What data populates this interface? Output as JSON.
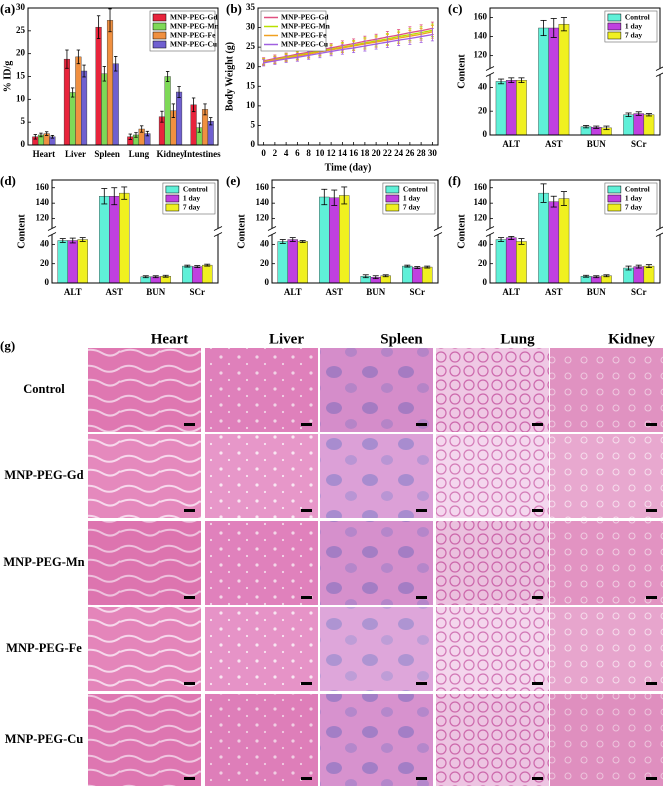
{
  "chart_data": [
    {
      "type": "bar",
      "label": "(a)",
      "ylabel": "% ID/g",
      "categories": [
        "Heart",
        "Liver",
        "Spleen",
        "Lung",
        "Kidney",
        "Intestines"
      ],
      "series": [
        {
          "name": "MNP-PEG-Gd",
          "color": "#e8243c",
          "values": [
            1.8,
            18.8,
            25.8,
            1.8,
            6.2,
            8.8
          ],
          "errors": [
            0.5,
            2.0,
            2.5,
            0.6,
            1.2,
            1.5
          ]
        },
        {
          "name": "MNP-PEG-Mn",
          "color": "#7ed957",
          "values": [
            2.2,
            11.5,
            15.6,
            2.2,
            15.0,
            3.8
          ],
          "errors": [
            0.4,
            1.0,
            1.6,
            0.5,
            1.1,
            1.0
          ]
        },
        {
          "name": "MNP-PEG-Fe",
          "color": "#f09040",
          "values": [
            2.5,
            19.3,
            27.3,
            3.5,
            7.5,
            7.8
          ],
          "errors": [
            0.4,
            1.5,
            2.5,
            0.7,
            1.5,
            1.2
          ]
        },
        {
          "name": "MNP-PEG-Cu",
          "color": "#7060d0",
          "values": [
            1.8,
            16.2,
            17.8,
            2.5,
            11.6,
            5.2
          ],
          "errors": [
            0.3,
            1.3,
            1.6,
            0.5,
            1.2,
            0.8
          ]
        }
      ],
      "ylim": [
        0,
        30
      ],
      "yticks": [
        0,
        5,
        10,
        15,
        20,
        25,
        30
      ],
      "legend": "upper right"
    },
    {
      "type": "line",
      "label": "(b)",
      "xlabel": "Time (day)",
      "ylabel": "Body Weight (g)",
      "x": [
        0,
        2,
        4,
        6,
        8,
        10,
        12,
        14,
        16,
        18,
        20,
        22,
        24,
        26,
        28,
        30
      ],
      "series": [
        {
          "name": "MNP-PEG-Gd",
          "color": "#e05080",
          "values": [
            21.5,
            22.1,
            22.6,
            23.2,
            23.7,
            24.3,
            24.8,
            25.4,
            25.9,
            26.5,
            27.0,
            27.6,
            28.1,
            28.7,
            29.2,
            29.8
          ],
          "errors": [
            0.8,
            0.9,
            0.9,
            1.0,
            1.0,
            1.1,
            1.1,
            1.2,
            1.2,
            1.3,
            1.3,
            1.4,
            1.4,
            1.5,
            1.5,
            1.6
          ]
        },
        {
          "name": "MNP-PEG-Mn",
          "color": "#b8e000",
          "values": [
            21.3,
            21.8,
            22.4,
            22.9,
            23.4,
            24.0,
            24.5,
            25.0,
            25.5,
            26.1,
            26.6,
            27.1,
            27.7,
            28.2,
            28.7,
            29.3
          ],
          "errors": [
            0.8,
            0.9,
            0.9,
            1.0,
            1.0,
            1.1,
            1.1,
            1.2,
            1.2,
            1.3,
            1.3,
            1.4,
            1.4,
            1.5,
            1.5,
            1.6
          ]
        },
        {
          "name": "MNP-PEG-Fe",
          "color": "#f0a020",
          "values": [
            21.2,
            21.7,
            22.2,
            22.7,
            23.2,
            23.8,
            24.3,
            24.8,
            25.3,
            25.8,
            26.3,
            26.8,
            27.3,
            27.8,
            28.3,
            28.9
          ],
          "errors": [
            0.8,
            0.9,
            0.9,
            1.0,
            1.0,
            1.1,
            1.1,
            1.2,
            1.2,
            1.3,
            1.3,
            1.4,
            1.4,
            1.5,
            1.5,
            1.6
          ]
        },
        {
          "name": "MNP-PEG-Cu",
          "color": "#a060e0",
          "values": [
            21.0,
            21.5,
            22.0,
            22.4,
            22.9,
            23.4,
            23.9,
            24.4,
            24.8,
            25.3,
            25.8,
            26.3,
            26.8,
            27.2,
            27.7,
            28.2
          ],
          "errors": [
            0.8,
            0.9,
            0.9,
            1.0,
            1.0,
            1.1,
            1.1,
            1.2,
            1.2,
            1.3,
            1.3,
            1.4,
            1.4,
            1.5,
            1.5,
            1.6
          ]
        }
      ],
      "xlim": [
        -1,
        31
      ],
      "xticks": [
        0,
        2,
        4,
        6,
        8,
        10,
        12,
        14,
        16,
        18,
        20,
        22,
        24,
        26,
        28,
        30
      ],
      "ylim": [
        0,
        35
      ],
      "yticks": [
        0,
        5,
        10,
        15,
        20,
        25,
        30,
        35
      ],
      "legend": "upper left"
    },
    {
      "type": "bar",
      "label": "(c)",
      "ylabel": "Content",
      "categories": [
        "ALT",
        "AST",
        "BUN",
        "SCr"
      ],
      "series": [
        {
          "name": "Control",
          "color": "#5ff0d8",
          "values": [
            45,
            149,
            7,
            17
          ],
          "errors": [
            2,
            8,
            1,
            1.5
          ]
        },
        {
          "name": "1 day",
          "color": "#c040e0",
          "values": [
            46,
            149,
            6.5,
            18
          ],
          "errors": [
            2,
            10,
            1,
            1.5
          ]
        },
        {
          "name": "7 day",
          "color": "#f0f020",
          "values": [
            46,
            153,
            6,
            17
          ],
          "errors": [
            2,
            7,
            1.5,
            1
          ]
        }
      ],
      "ylim": [
        0,
        170
      ],
      "ybreak": [
        48,
        110
      ],
      "yticks": [
        0,
        20,
        40,
        120,
        140,
        160
      ],
      "legend": "upper right"
    },
    {
      "type": "bar",
      "label": "(d)",
      "ylabel": "Content",
      "categories": [
        "ALT",
        "AST",
        "BUN",
        "SCr"
      ],
      "series": [
        {
          "name": "Control",
          "color": "#5ff0d8",
          "values": [
            44,
            149,
            6.5,
            17.5
          ],
          "errors": [
            2,
            10,
            1,
            1
          ]
        },
        {
          "name": "1 day",
          "color": "#c040e0",
          "values": [
            44,
            149,
            6.5,
            17
          ],
          "errors": [
            2.5,
            11,
            1,
            1
          ]
        },
        {
          "name": "7 day",
          "color": "#f0f020",
          "values": [
            45,
            153,
            7,
            18.5
          ],
          "errors": [
            2,
            8,
            1,
            1
          ]
        }
      ],
      "ylim": [
        0,
        170
      ],
      "ybreak": [
        48,
        110
      ],
      "yticks": [
        0,
        20,
        40,
        120,
        140,
        160
      ],
      "legend": "upper right"
    },
    {
      "type": "bar",
      "label": "(e)",
      "ylabel": "Content",
      "categories": [
        "ALT",
        "AST",
        "BUN",
        "SCr"
      ],
      "series": [
        {
          "name": "Control",
          "color": "#5ff0d8",
          "values": [
            43,
            148,
            7,
            17.5
          ],
          "errors": [
            2,
            10,
            1.5,
            1
          ]
        },
        {
          "name": "1 day",
          "color": "#c040e0",
          "values": [
            45,
            147,
            6,
            16
          ],
          "errors": [
            2,
            10,
            1.5,
            1
          ]
        },
        {
          "name": "7 day",
          "color": "#f0f020",
          "values": [
            43,
            150,
            7.5,
            16.5
          ],
          "errors": [
            1,
            11,
            1,
            1
          ]
        }
      ],
      "ylim": [
        0,
        170
      ],
      "ybreak": [
        48,
        110
      ],
      "yticks": [
        0,
        20,
        40,
        120,
        140,
        160
      ],
      "legend": "upper right"
    },
    {
      "type": "bar",
      "label": "(f)",
      "ylabel": "Content",
      "categories": [
        "ALT",
        "AST",
        "BUN",
        "SCr"
      ],
      "series": [
        {
          "name": "Control",
          "color": "#5ff0d8",
          "values": [
            45,
            153,
            7,
            15.5
          ],
          "errors": [
            2,
            12,
            1,
            2
          ]
        },
        {
          "name": "1 day",
          "color": "#c040e0",
          "values": [
            47,
            142,
            6.5,
            17
          ],
          "errors": [
            2,
            7,
            1,
            1.5
          ]
        },
        {
          "name": "7 day",
          "color": "#f0f020",
          "values": [
            43,
            146,
            7.5,
            17.5
          ],
          "errors": [
            3,
            9,
            1,
            1.5
          ]
        }
      ],
      "ylim": [
        0,
        170
      ],
      "ybreak": [
        48,
        110
      ],
      "yticks": [
        0,
        20,
        40,
        120,
        140,
        160
      ],
      "legend": "upper right"
    }
  ],
  "histology": {
    "label": "(g)",
    "columns": [
      "Heart",
      "Liver",
      "Spleen",
      "Lung",
      "Kidney"
    ],
    "rows": [
      "Control",
      "MNP-PEG-Gd",
      "MNP-PEG-Mn",
      "MNP-PEG-Fe",
      "MNP-PEG-Cu"
    ]
  }
}
